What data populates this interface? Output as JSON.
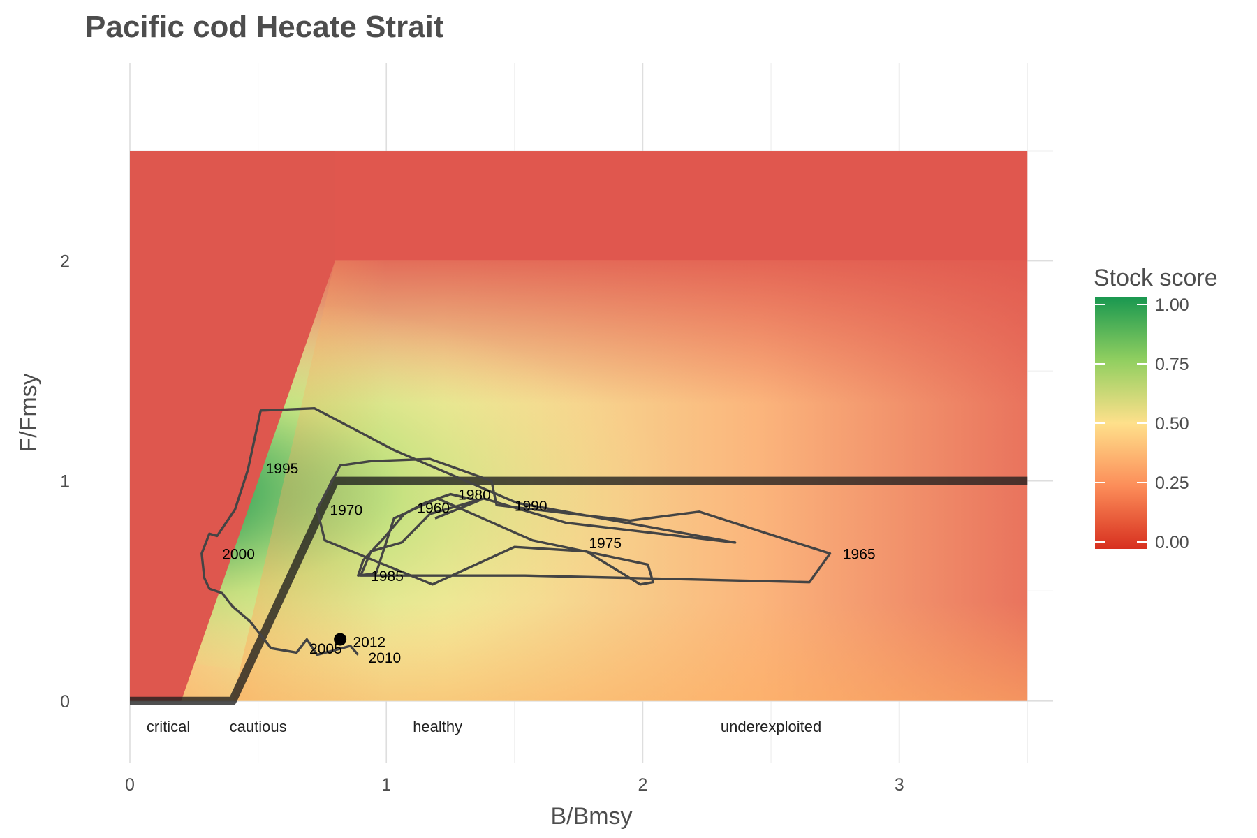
{
  "chart_data": {
    "type": "line",
    "title": "Pacific cod Hecate Strait",
    "xlabel": "B/Bmsy",
    "ylabel": "F/Fmsy",
    "xlim": [
      0,
      3.6
    ],
    "ylim": [
      -0.28,
      2.9
    ],
    "x_ticks": [
      "0",
      "1",
      "2",
      "3"
    ],
    "y_ticks": [
      "0",
      "1",
      "2"
    ],
    "grid": true,
    "legend": {
      "title": "Stock score",
      "ticks": [
        "0.00",
        "0.25",
        "0.50",
        "0.75",
        "1.00"
      ],
      "placement": "right",
      "colors": [
        "#d7301f",
        "#fc8d59",
        "#fee08b",
        "#91cf60",
        "#1a9850"
      ]
    },
    "zones": [
      {
        "label": "critical",
        "x": 0.15
      },
      {
        "label": "cautious",
        "x": 0.5
      },
      {
        "label": "healthy",
        "x": 1.2
      },
      {
        "label": "underexploited",
        "x": 2.5
      }
    ],
    "reference_line": {
      "x": [
        0,
        0.4,
        0.8,
        3.5
      ],
      "y": [
        0,
        0,
        1,
        1
      ],
      "color": "#1e1e1e"
    },
    "trajectory": {
      "color": "#444444",
      "x": [
        1.19,
        1.36,
        1.25,
        1.15,
        1.07,
        0.99,
        0.91,
        0.89,
        0.96,
        1.03,
        1.2,
        1.57,
        2.02,
        2.04,
        1.99,
        1.78,
        1.5,
        1.18,
        0.76,
        0.73,
        0.82,
        0.94,
        1.17,
        1.41,
        1.43,
        1.95,
        2.22,
        2.73,
        2.65,
        1.54,
        0.9,
        0.94,
        1.06,
        1.17,
        1.38,
        1.7,
        2.36,
        1.51,
        1.03,
        0.72,
        0.51,
        0.46,
        0.41,
        0.34,
        0.31,
        0.28,
        0.29,
        0.31,
        0.36,
        0.4,
        0.47,
        0.55,
        0.65,
        0.69,
        0.73,
        0.86,
        0.89
      ],
      "y": [
        0.83,
        0.91,
        0.94,
        0.9,
        0.85,
        0.74,
        0.64,
        0.57,
        0.58,
        0.83,
        0.92,
        0.73,
        0.62,
        0.54,
        0.53,
        0.68,
        0.7,
        0.53,
        0.73,
        0.87,
        1.07,
        1.09,
        1.1,
        1.0,
        0.89,
        0.82,
        0.86,
        0.67,
        0.54,
        0.57,
        0.57,
        0.68,
        0.72,
        0.85,
        0.92,
        0.81,
        0.72,
        0.9,
        1.14,
        1.33,
        1.32,
        1.05,
        0.87,
        0.75,
        0.76,
        0.67,
        0.56,
        0.51,
        0.49,
        0.43,
        0.36,
        0.24,
        0.22,
        0.28,
        0.21,
        0.25,
        0.21
      ],
      "current": {
        "label": "2012",
        "x": 0.82,
        "y": 0.28
      },
      "year_labels": [
        {
          "year": "1960",
          "x": 1.12,
          "y": 0.88
        },
        {
          "year": "1965",
          "x": 2.78,
          "y": 0.67
        },
        {
          "year": "1970",
          "x": 0.78,
          "y": 0.87
        },
        {
          "year": "1975",
          "x": 1.79,
          "y": 0.72
        },
        {
          "year": "1980",
          "x": 1.28,
          "y": 0.94
        },
        {
          "year": "1985",
          "x": 0.94,
          "y": 0.57
        },
        {
          "year": "1990",
          "x": 1.5,
          "y": 0.89
        },
        {
          "year": "1995",
          "x": 0.53,
          "y": 1.06
        },
        {
          "year": "2000",
          "x": 0.36,
          "y": 0.67
        },
        {
          "year": "2005",
          "x": 0.7,
          "y": 0.24
        },
        {
          "year": "2010",
          "x": 0.93,
          "y": 0.2
        },
        {
          "year": "2012",
          "x": 0.87,
          "y": 0.27
        }
      ]
    }
  }
}
